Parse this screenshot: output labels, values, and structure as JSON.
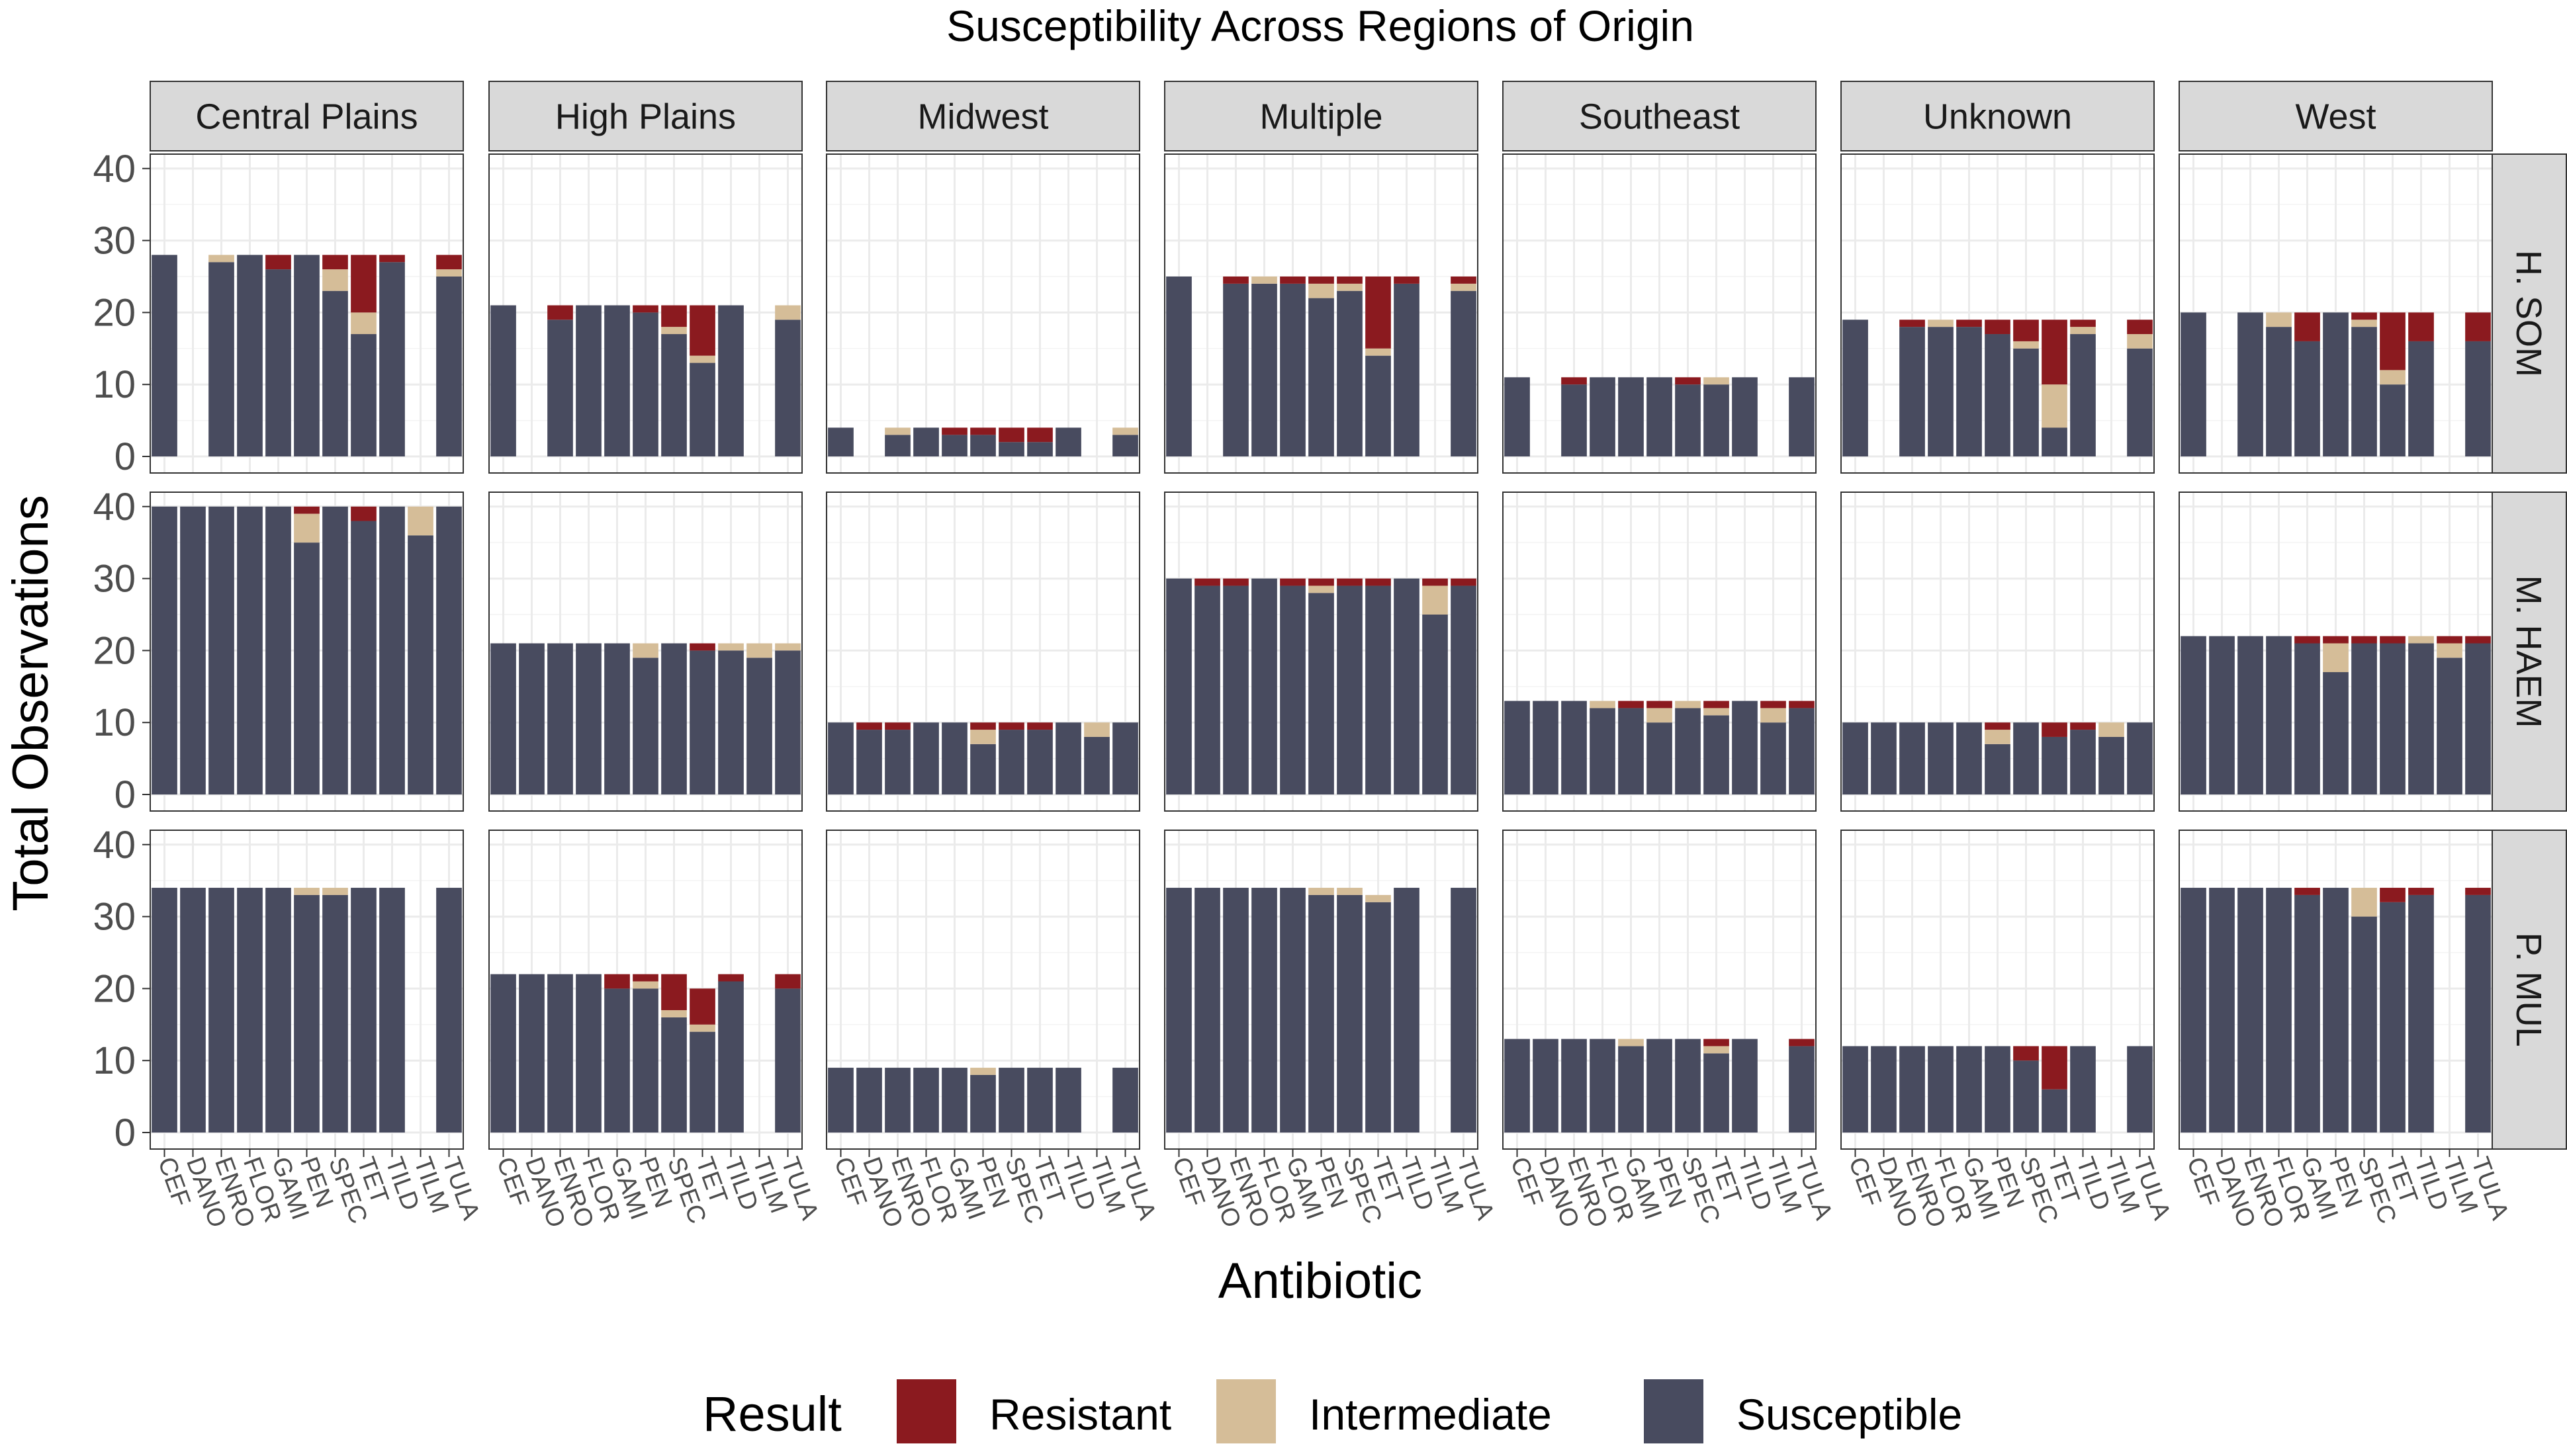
{
  "chart_data": {
    "type": "bar",
    "stacked": true,
    "faceted": true,
    "title": "Susceptibility Across Regions of Origin",
    "xlabel": "Antibiotic",
    "ylabel": "Total Observations",
    "ylim": [
      0,
      42
    ],
    "y_ticks": [
      0,
      10,
      20,
      30,
      40
    ],
    "categories": [
      "CEF",
      "DANO",
      "ENRO",
      "FLOR",
      "GAMI",
      "PEN",
      "SPEC",
      "TET",
      "TILD",
      "TILM",
      "TULA"
    ],
    "regions": [
      "Central Plains",
      "High Plains",
      "Midwest",
      "Multiple",
      "Southeast",
      "Unknown",
      "West"
    ],
    "pathogens": [
      "H. SOM",
      "M. HAEM",
      "P. MUL"
    ],
    "legend": {
      "title": "Result",
      "position": "bottom",
      "items": [
        {
          "name": "Resistant",
          "color": "#8b1a1f"
        },
        {
          "name": "Intermediate",
          "color": "#d5bd98"
        },
        {
          "name": "Susceptible",
          "color": "#484b5f"
        }
      ]
    },
    "note": "Each bar = [susceptible, intermediate, resistant] stacked from bottom; null = no bar",
    "panels": {
      "H. SOM": {
        "Central Plains": [
          [
            28,
            0,
            0
          ],
          null,
          [
            27,
            1,
            0
          ],
          [
            28,
            0,
            0
          ],
          [
            26,
            0,
            2
          ],
          [
            28,
            0,
            0
          ],
          [
            23,
            3,
            2
          ],
          [
            17,
            3,
            8
          ],
          [
            27,
            0,
            1
          ],
          null,
          [
            25,
            1,
            2
          ]
        ],
        "High Plains": [
          [
            21,
            0,
            0
          ],
          null,
          [
            19,
            0,
            2
          ],
          [
            21,
            0,
            0
          ],
          [
            21,
            0,
            0
          ],
          [
            20,
            0,
            1
          ],
          [
            17,
            1,
            3
          ],
          [
            13,
            1,
            7
          ],
          [
            21,
            0,
            0
          ],
          null,
          [
            19,
            2,
            0
          ]
        ],
        "Midwest": [
          [
            4,
            0,
            0
          ],
          null,
          [
            3,
            1,
            0
          ],
          [
            4,
            0,
            0
          ],
          [
            3,
            0,
            1
          ],
          [
            3,
            0,
            1
          ],
          [
            2,
            0,
            2
          ],
          [
            2,
            0,
            2
          ],
          [
            4,
            0,
            0
          ],
          null,
          [
            3,
            1,
            0
          ]
        ],
        "Multiple": [
          [
            25,
            0,
            0
          ],
          null,
          [
            24,
            0,
            1
          ],
          [
            24,
            1,
            0
          ],
          [
            24,
            0,
            1
          ],
          [
            22,
            2,
            1
          ],
          [
            23,
            1,
            1
          ],
          [
            14,
            1,
            10
          ],
          [
            24,
            0,
            1
          ],
          null,
          [
            23,
            1,
            1
          ]
        ],
        "Southeast": [
          [
            11,
            0,
            0
          ],
          null,
          [
            10,
            0,
            1
          ],
          [
            11,
            0,
            0
          ],
          [
            11,
            0,
            0
          ],
          [
            11,
            0,
            0
          ],
          [
            10,
            0,
            1
          ],
          [
            10,
            1,
            0
          ],
          [
            11,
            0,
            0
          ],
          null,
          [
            11,
            0,
            0
          ]
        ],
        "Unknown": [
          [
            19,
            0,
            0
          ],
          null,
          [
            18,
            0,
            1
          ],
          [
            18,
            1,
            0
          ],
          [
            18,
            0,
            1
          ],
          [
            17,
            0,
            2
          ],
          [
            15,
            1,
            3
          ],
          [
            4,
            6,
            9
          ],
          [
            17,
            1,
            1
          ],
          null,
          [
            15,
            2,
            2
          ]
        ],
        "West": [
          [
            20,
            0,
            0
          ],
          null,
          [
            20,
            0,
            0
          ],
          [
            18,
            2,
            0
          ],
          [
            16,
            0,
            4
          ],
          [
            20,
            0,
            0
          ],
          [
            18,
            1,
            1
          ],
          [
            10,
            2,
            8
          ],
          [
            16,
            0,
            4
          ],
          null,
          [
            16,
            0,
            4
          ]
        ]
      },
      "M. HAEM": {
        "Central Plains": [
          [
            40,
            0,
            0
          ],
          [
            40,
            0,
            0
          ],
          [
            40,
            0,
            0
          ],
          [
            40,
            0,
            0
          ],
          [
            40,
            0,
            0
          ],
          [
            35,
            4,
            1
          ],
          [
            40,
            0,
            0
          ],
          [
            38,
            0,
            2
          ],
          [
            40,
            0,
            0
          ],
          [
            36,
            4,
            0
          ],
          [
            40,
            0,
            0
          ]
        ],
        "High Plains": [
          [
            21,
            0,
            0
          ],
          [
            21,
            0,
            0
          ],
          [
            21,
            0,
            0
          ],
          [
            21,
            0,
            0
          ],
          [
            21,
            0,
            0
          ],
          [
            19,
            2,
            0
          ],
          [
            21,
            0,
            0
          ],
          [
            20,
            0,
            1
          ],
          [
            20,
            1,
            0
          ],
          [
            19,
            2,
            0
          ],
          [
            20,
            1,
            0
          ]
        ],
        "Midwest": [
          [
            10,
            0,
            0
          ],
          [
            9,
            0,
            1
          ],
          [
            9,
            0,
            1
          ],
          [
            10,
            0,
            0
          ],
          [
            10,
            0,
            0
          ],
          [
            7,
            2,
            1
          ],
          [
            9,
            0,
            1
          ],
          [
            9,
            0,
            1
          ],
          [
            10,
            0,
            0
          ],
          [
            8,
            2,
            0
          ],
          [
            10,
            0,
            0
          ]
        ],
        "Multiple": [
          [
            30,
            0,
            0
          ],
          [
            29,
            0,
            1
          ],
          [
            29,
            0,
            1
          ],
          [
            30,
            0,
            0
          ],
          [
            29,
            0,
            1
          ],
          [
            28,
            1,
            1
          ],
          [
            29,
            0,
            1
          ],
          [
            29,
            0,
            1
          ],
          [
            30,
            0,
            0
          ],
          [
            25,
            4,
            1
          ],
          [
            29,
            0,
            1
          ]
        ],
        "Southeast": [
          [
            13,
            0,
            0
          ],
          [
            13,
            0,
            0
          ],
          [
            13,
            0,
            0
          ],
          [
            12,
            1,
            0
          ],
          [
            12,
            0,
            1
          ],
          [
            10,
            2,
            1
          ],
          [
            12,
            1,
            0
          ],
          [
            11,
            1,
            1
          ],
          [
            13,
            0,
            0
          ],
          [
            10,
            2,
            1
          ],
          [
            12,
            0,
            1
          ]
        ],
        "Unknown": [
          [
            10,
            0,
            0
          ],
          [
            10,
            0,
            0
          ],
          [
            10,
            0,
            0
          ],
          [
            10,
            0,
            0
          ],
          [
            10,
            0,
            0
          ],
          [
            7,
            2,
            1
          ],
          [
            10,
            0,
            0
          ],
          [
            8,
            0,
            2
          ],
          [
            9,
            0,
            1
          ],
          [
            8,
            2,
            0
          ],
          [
            10,
            0,
            0
          ]
        ],
        "West": [
          [
            22,
            0,
            0
          ],
          [
            22,
            0,
            0
          ],
          [
            22,
            0,
            0
          ],
          [
            22,
            0,
            0
          ],
          [
            21,
            0,
            1
          ],
          [
            17,
            4,
            1
          ],
          [
            21,
            0,
            1
          ],
          [
            21,
            0,
            1
          ],
          [
            21,
            1,
            0
          ],
          [
            19,
            2,
            1
          ],
          [
            21,
            0,
            1
          ]
        ]
      },
      "P. MUL": {
        "Central Plains": [
          [
            34,
            0,
            0
          ],
          [
            34,
            0,
            0
          ],
          [
            34,
            0,
            0
          ],
          [
            34,
            0,
            0
          ],
          [
            34,
            0,
            0
          ],
          [
            33,
            1,
            0
          ],
          [
            33,
            1,
            0
          ],
          [
            34,
            0,
            0
          ],
          [
            34,
            0,
            0
          ],
          null,
          [
            34,
            0,
            0
          ]
        ],
        "High Plains": [
          [
            22,
            0,
            0
          ],
          [
            22,
            0,
            0
          ],
          [
            22,
            0,
            0
          ],
          [
            22,
            0,
            0
          ],
          [
            20,
            0,
            2
          ],
          [
            20,
            1,
            1
          ],
          [
            16,
            1,
            5
          ],
          [
            14,
            1,
            5
          ],
          [
            21,
            0,
            1
          ],
          null,
          [
            20,
            0,
            2
          ]
        ],
        "Midwest": [
          [
            9,
            0,
            0
          ],
          [
            9,
            0,
            0
          ],
          [
            9,
            0,
            0
          ],
          [
            9,
            0,
            0
          ],
          [
            9,
            0,
            0
          ],
          [
            8,
            1,
            0
          ],
          [
            9,
            0,
            0
          ],
          [
            9,
            0,
            0
          ],
          [
            9,
            0,
            0
          ],
          null,
          [
            9,
            0,
            0
          ]
        ],
        "Multiple": [
          [
            34,
            0,
            0
          ],
          [
            34,
            0,
            0
          ],
          [
            34,
            0,
            0
          ],
          [
            34,
            0,
            0
          ],
          [
            34,
            0,
            0
          ],
          [
            33,
            1,
            0
          ],
          [
            33,
            1,
            0
          ],
          [
            32,
            1,
            0
          ],
          [
            34,
            0,
            0
          ],
          null,
          [
            34,
            0,
            0
          ]
        ],
        "Southeast": [
          [
            13,
            0,
            0
          ],
          [
            13,
            0,
            0
          ],
          [
            13,
            0,
            0
          ],
          [
            13,
            0,
            0
          ],
          [
            12,
            1,
            0
          ],
          [
            13,
            0,
            0
          ],
          [
            13,
            0,
            0
          ],
          [
            11,
            1,
            1
          ],
          [
            13,
            0,
            0
          ],
          null,
          [
            12,
            0,
            1
          ]
        ],
        "Unknown": [
          [
            12,
            0,
            0
          ],
          [
            12,
            0,
            0
          ],
          [
            12,
            0,
            0
          ],
          [
            12,
            0,
            0
          ],
          [
            12,
            0,
            0
          ],
          [
            12,
            0,
            0
          ],
          [
            10,
            0,
            2
          ],
          [
            6,
            0,
            6
          ],
          [
            12,
            0,
            0
          ],
          null,
          [
            12,
            0,
            0
          ]
        ],
        "West": [
          [
            34,
            0,
            0
          ],
          [
            34,
            0,
            0
          ],
          [
            34,
            0,
            0
          ],
          [
            34,
            0,
            0
          ],
          [
            33,
            0,
            1
          ],
          [
            34,
            0,
            0
          ],
          [
            30,
            4,
            0
          ],
          [
            32,
            0,
            2
          ],
          [
            33,
            0,
            1
          ],
          null,
          [
            33,
            0,
            1
          ]
        ]
      }
    }
  }
}
